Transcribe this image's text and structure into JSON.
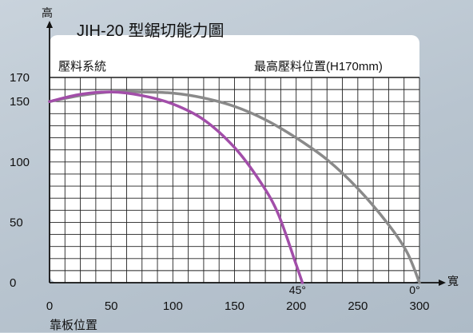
{
  "chart_data": {
    "type": "line",
    "title": "JIH-20 型鋸切能力圖",
    "xlabel": "寬",
    "ylabel": "高",
    "bottom_left_label": "靠板位置",
    "header_left": "壓料系統",
    "header_right": "最高壓料位置(H170mm)",
    "xlim": [
      0,
      300
    ],
    "ylim": [
      0,
      170
    ],
    "x_ticks": [
      "0",
      "50",
      "100",
      "150",
      "200",
      "250",
      "300"
    ],
    "y_ticks": [
      "0",
      "50",
      "100",
      "150",
      "170"
    ],
    "series": [
      {
        "name": "0°",
        "color": "#8a8a8a",
        "x": [
          0,
          25,
          50,
          75,
          100,
          125,
          150,
          175,
          200,
          225,
          250,
          275,
          290,
          300
        ],
        "y": [
          150,
          155,
          158,
          158,
          157,
          153,
          146,
          135,
          120,
          102,
          78,
          48,
          25,
          0
        ]
      },
      {
        "name": "45°",
        "color": "#a24ea9",
        "x": [
          0,
          25,
          50,
          75,
          100,
          125,
          150,
          170,
          185,
          200,
          205
        ],
        "y": [
          150,
          156,
          158,
          155,
          148,
          135,
          112,
          85,
          58,
          15,
          0
        ]
      }
    ]
  },
  "colors": {
    "grid": "#222222",
    "plot_bg": "#ffffff",
    "accent": "#a24ea9",
    "gray": "#8a8a8a"
  }
}
